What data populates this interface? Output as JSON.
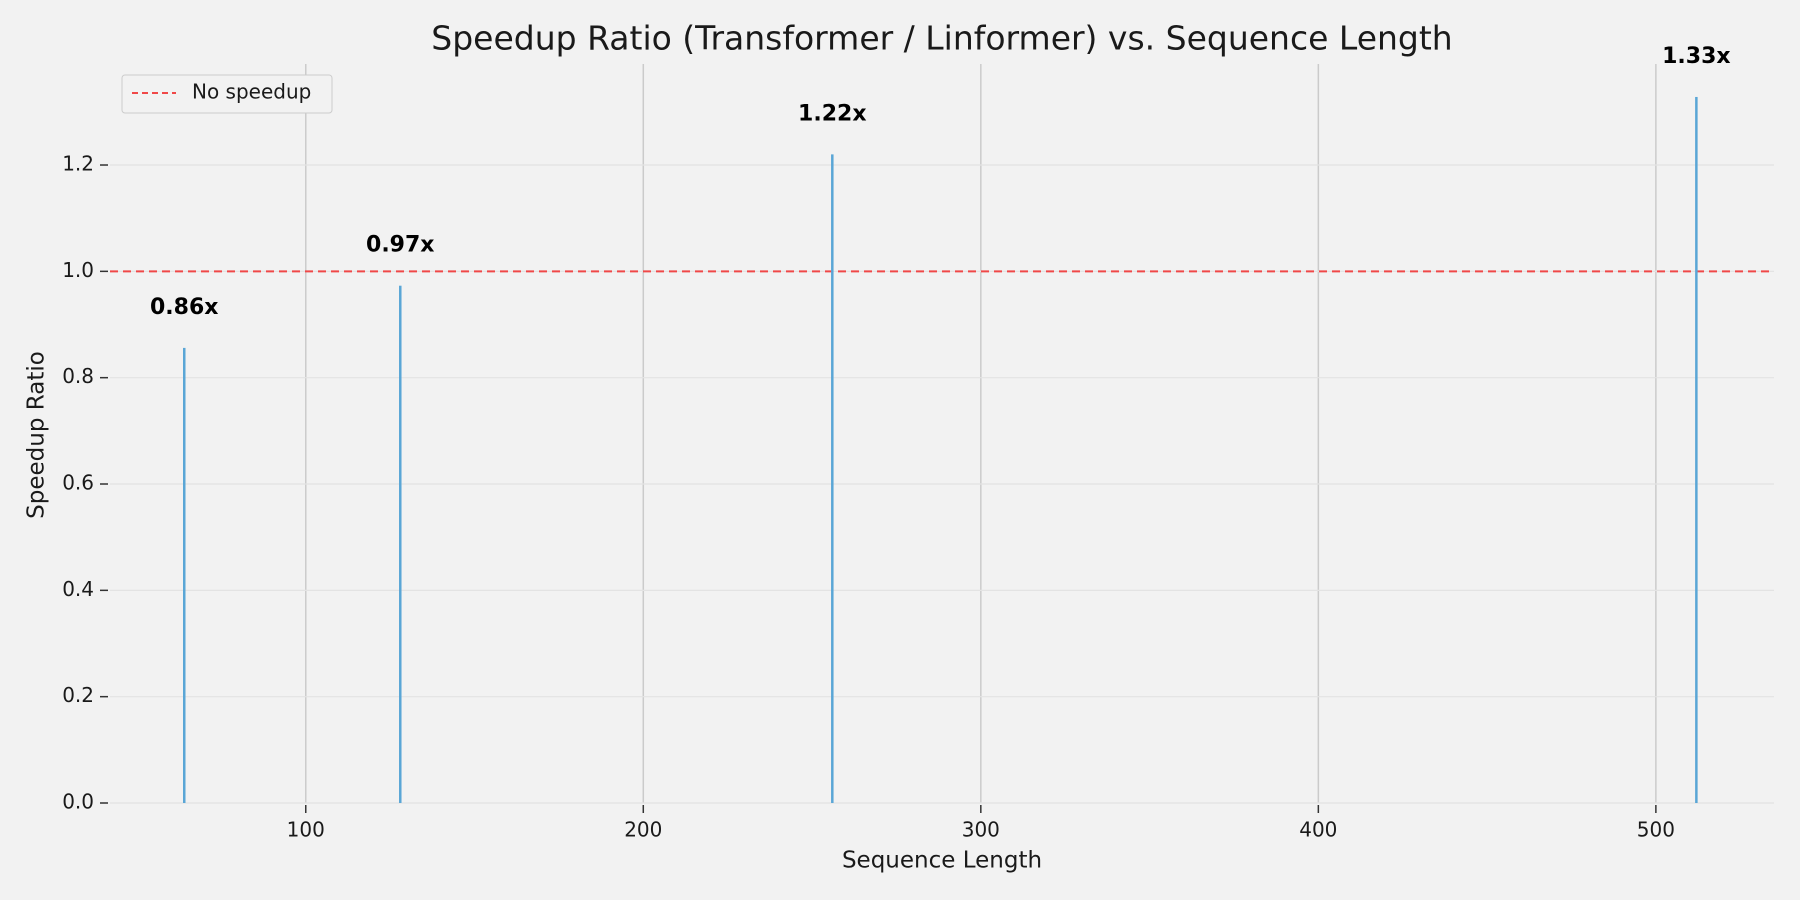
{
  "chart_data": {
    "type": "bar",
    "title": "Speedup Ratio (Transformer / Linformer) vs. Sequence Length",
    "xlabel": "Sequence Length",
    "ylabel": "Speedup Ratio",
    "xlim": [
      42,
      535
    ],
    "ylim": [
      0,
      1.39
    ],
    "xticks": [
      100,
      200,
      300,
      400,
      500
    ],
    "yticks": [
      0.0,
      0.2,
      0.4,
      0.6,
      0.8,
      1.0,
      1.2
    ],
    "x": [
      64,
      128,
      256,
      512
    ],
    "values": [
      0.856,
      0.973,
      1.22,
      1.328
    ],
    "data_labels": [
      "0.86x",
      "0.97x",
      "1.22x",
      "1.33x"
    ],
    "bar_color": "#5aa6d6",
    "reference_line": {
      "y": 1.0,
      "label": "No speedup",
      "color": "#f04848",
      "style": "dashed"
    },
    "legend": {
      "position": "top-left",
      "entries": [
        "No speedup"
      ]
    },
    "grid": {
      "x": true,
      "y": true
    },
    "background": "#f2f2f2"
  }
}
